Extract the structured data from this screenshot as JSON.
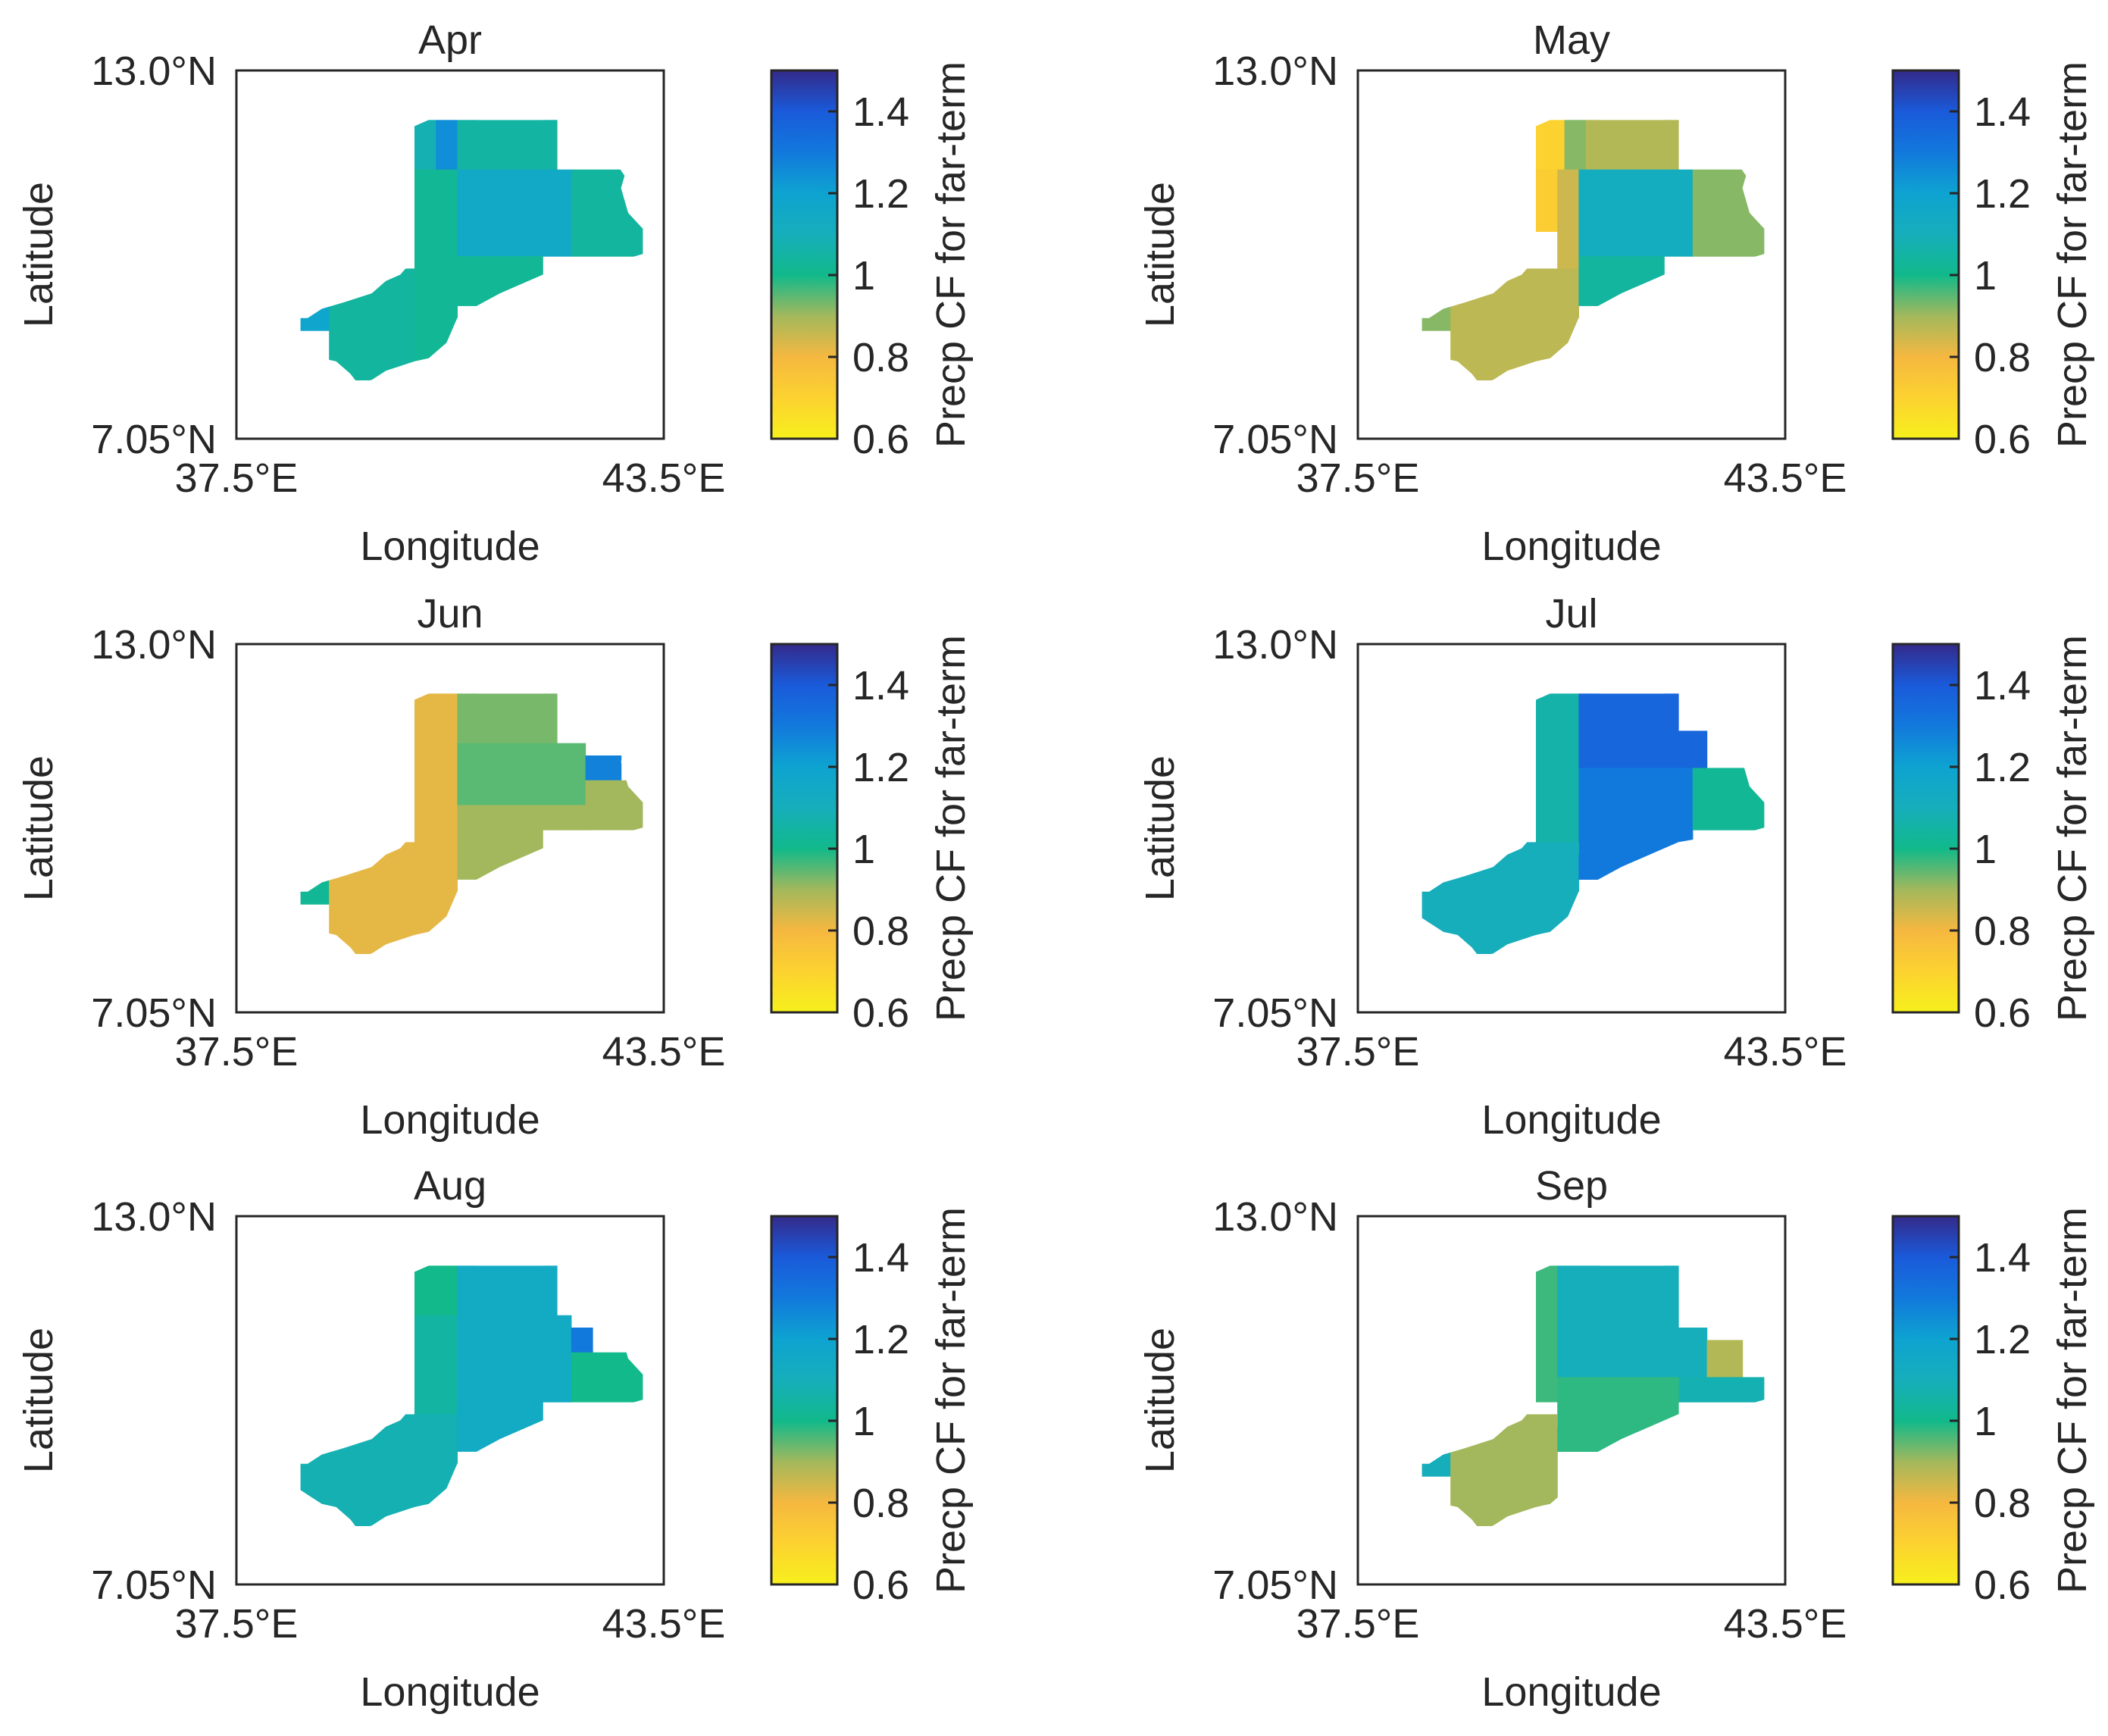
{
  "figure": {
    "colorbar": {
      "label": "Precp CF for far-term",
      "ticks": [
        "0.6",
        "0.8",
        "1",
        "1.2",
        "1.4"
      ],
      "tick_values": [
        0.6,
        0.8,
        1.0,
        1.2,
        1.4
      ],
      "range": [
        0.6,
        1.5
      ],
      "stops": [
        {
          "v": 0.6,
          "color": "#f7f01c"
        },
        {
          "v": 0.7,
          "color": "#fcd230"
        },
        {
          "v": 0.8,
          "color": "#f5b840"
        },
        {
          "v": 0.9,
          "color": "#a3b85c"
        },
        {
          "v": 1.0,
          "color": "#11b98b"
        },
        {
          "v": 1.1,
          "color": "#16aebb"
        },
        {
          "v": 1.2,
          "color": "#0ea3d1"
        },
        {
          "v": 1.3,
          "color": "#1279dc"
        },
        {
          "v": 1.4,
          "color": "#1a5ada"
        },
        {
          "v": 1.5,
          "color": "#342a8a"
        }
      ]
    },
    "axes": {
      "xlabel": "Longitude",
      "ylabel": "Latitude",
      "x_ticks": [
        "37.5°E",
        "43.5°E"
      ],
      "y_ticks": [
        "13.0°N",
        "7.05°N"
      ],
      "xlim": [
        37.5,
        43.5
      ],
      "ylim": [
        7.05,
        13.0
      ]
    }
  },
  "chart_data": [
    {
      "type": "heatmap",
      "title": "Apr",
      "cells": [
        {
          "lon": [
            40.0,
            40.3
          ],
          "lat": [
            11.4,
            12.2
          ],
          "value": 1.08
        },
        {
          "lon": [
            40.3,
            40.6
          ],
          "lat": [
            11.4,
            12.2
          ],
          "value": 1.25
        },
        {
          "lon": [
            40.6,
            42.0
          ],
          "lat": [
            11.4,
            12.2
          ],
          "value": 1.05
        },
        {
          "lon": [
            40.0,
            40.6
          ],
          "lat": [
            9.8,
            11.4
          ],
          "value": 1.02
        },
        {
          "lon": [
            40.6,
            42.2
          ],
          "lat": [
            10.0,
            11.4
          ],
          "value": 1.15
        },
        {
          "lon": [
            42.2,
            43.2
          ],
          "lat": [
            10.0,
            11.4
          ],
          "value": 1.04
        },
        {
          "lon": [
            38.4,
            38.8
          ],
          "lat": [
            8.8,
            9.8
          ],
          "value": 1.18
        },
        {
          "lon": [
            38.8,
            40.0
          ],
          "lat": [
            8.0,
            9.8
          ],
          "value": 1.04
        },
        {
          "lon": [
            40.0,
            40.6
          ],
          "lat": [
            8.0,
            9.8
          ],
          "value": 1.02
        },
        {
          "lon": [
            40.6,
            41.8
          ],
          "lat": [
            9.2,
            10.0
          ],
          "value": 1.02
        }
      ]
    },
    {
      "type": "heatmap",
      "title": "May",
      "cells": [
        {
          "lon": [
            40.0,
            40.4
          ],
          "lat": [
            11.4,
            12.2
          ],
          "value": 0.7
        },
        {
          "lon": [
            40.4,
            40.7
          ],
          "lat": [
            11.4,
            12.2
          ],
          "value": 0.92
        },
        {
          "lon": [
            40.7,
            42.0
          ],
          "lat": [
            11.4,
            12.2
          ],
          "value": 0.88
        },
        {
          "lon": [
            40.0,
            40.3
          ],
          "lat": [
            10.4,
            11.4
          ],
          "value": 0.72
        },
        {
          "lon": [
            40.3,
            40.6
          ],
          "lat": [
            9.8,
            11.4
          ],
          "value": 0.85
        },
        {
          "lon": [
            40.6,
            42.2
          ],
          "lat": [
            10.0,
            11.4
          ],
          "value": 1.12
        },
        {
          "lon": [
            42.2,
            43.2
          ],
          "lat": [
            10.0,
            11.4
          ],
          "value": 0.92
        },
        {
          "lon": [
            38.4,
            38.8
          ],
          "lat": [
            8.8,
            9.8
          ],
          "value": 0.92
        },
        {
          "lon": [
            38.8,
            40.6
          ],
          "lat": [
            8.0,
            9.8
          ],
          "value": 0.87
        },
        {
          "lon": [
            40.6,
            41.8
          ],
          "lat": [
            9.2,
            10.0
          ],
          "value": 1.04
        }
      ]
    },
    {
      "type": "heatmap",
      "title": "Jun",
      "cells": [
        {
          "lon": [
            40.0,
            40.6
          ],
          "lat": [
            9.8,
            12.2
          ],
          "value": 0.82
        },
        {
          "lon": [
            40.6,
            42.0
          ],
          "lat": [
            11.4,
            12.2
          ],
          "value": 0.93
        },
        {
          "lon": [
            40.6,
            42.4
          ],
          "lat": [
            10.4,
            11.4
          ],
          "value": 0.95
        },
        {
          "lon": [
            42.4,
            42.9
          ],
          "lat": [
            10.8,
            11.2
          ],
          "value": 1.28
        },
        {
          "lon": [
            42.4,
            43.2
          ],
          "lat": [
            10.0,
            10.8
          ],
          "value": 0.9
        },
        {
          "lon": [
            40.6,
            42.4
          ],
          "lat": [
            10.0,
            10.4
          ],
          "value": 0.9
        },
        {
          "lon": [
            38.4,
            38.8
          ],
          "lat": [
            8.8,
            9.8
          ],
          "value": 1.02
        },
        {
          "lon": [
            38.8,
            40.6
          ],
          "lat": [
            8.0,
            9.8
          ],
          "value": 0.82
        },
        {
          "lon": [
            40.6,
            41.8
          ],
          "lat": [
            9.2,
            10.0
          ],
          "value": 0.9
        }
      ]
    },
    {
      "type": "heatmap",
      "title": "Jul",
      "cells": [
        {
          "lon": [
            40.0,
            40.6
          ],
          "lat": [
            9.8,
            12.2
          ],
          "value": 1.06
        },
        {
          "lon": [
            40.6,
            42.0
          ],
          "lat": [
            11.0,
            12.2
          ],
          "value": 1.36
        },
        {
          "lon": [
            42.0,
            42.4
          ],
          "lat": [
            11.0,
            11.6
          ],
          "value": 1.36
        },
        {
          "lon": [
            40.6,
            42.2
          ],
          "lat": [
            9.6,
            11.0
          ],
          "value": 1.3
        },
        {
          "lon": [
            42.2,
            43.2
          ],
          "lat": [
            10.0,
            11.0
          ],
          "value": 1.02
        },
        {
          "lon": [
            38.4,
            40.0
          ],
          "lat": [
            8.0,
            9.8
          ],
          "value": 1.1
        },
        {
          "lon": [
            40.0,
            40.6
          ],
          "lat": [
            8.0,
            9.8
          ],
          "value": 1.1
        },
        {
          "lon": [
            40.6,
            41.8
          ],
          "lat": [
            9.2,
            9.6
          ],
          "value": 1.3
        }
      ]
    },
    {
      "type": "heatmap",
      "title": "Aug",
      "cells": [
        {
          "lon": [
            40.0,
            40.6
          ],
          "lat": [
            11.4,
            12.2
          ],
          "value": 1.0
        },
        {
          "lon": [
            40.6,
            42.0
          ],
          "lat": [
            11.4,
            12.2
          ],
          "value": 1.14
        },
        {
          "lon": [
            40.0,
            40.6
          ],
          "lat": [
            9.8,
            11.4
          ],
          "value": 1.05
        },
        {
          "lon": [
            40.6,
            42.2
          ],
          "lat": [
            10.0,
            11.4
          ],
          "value": 1.14
        },
        {
          "lon": [
            42.2,
            42.5
          ],
          "lat": [
            10.8,
            11.2
          ],
          "value": 1.3
        },
        {
          "lon": [
            42.2,
            43.2
          ],
          "lat": [
            10.0,
            10.8
          ],
          "value": 1.0
        },
        {
          "lon": [
            38.4,
            40.0
          ],
          "lat": [
            8.0,
            9.8
          ],
          "value": 1.08
        },
        {
          "lon": [
            40.0,
            40.6
          ],
          "lat": [
            8.0,
            9.8
          ],
          "value": 1.08
        },
        {
          "lon": [
            40.6,
            41.8
          ],
          "lat": [
            9.2,
            10.0
          ],
          "value": 1.14
        }
      ]
    },
    {
      "type": "heatmap",
      "title": "Sep",
      "cells": [
        {
          "lon": [
            40.0,
            40.3
          ],
          "lat": [
            10.0,
            12.2
          ],
          "value": 0.97
        },
        {
          "lon": [
            40.3,
            42.0
          ],
          "lat": [
            11.2,
            12.2
          ],
          "value": 1.1
        },
        {
          "lon": [
            40.3,
            42.4
          ],
          "lat": [
            10.4,
            11.2
          ],
          "value": 1.1
        },
        {
          "lon": [
            42.4,
            42.9
          ],
          "lat": [
            10.4,
            11.0
          ],
          "value": 0.88
        },
        {
          "lon": [
            42.0,
            43.2
          ],
          "lat": [
            10.0,
            10.4
          ],
          "value": 1.08
        },
        {
          "lon": [
            40.3,
            42.0
          ],
          "lat": [
            9.6,
            10.4
          ],
          "value": 0.98
        },
        {
          "lon": [
            38.4,
            38.8
          ],
          "lat": [
            8.8,
            9.8
          ],
          "value": 1.1
        },
        {
          "lon": [
            38.8,
            40.3
          ],
          "lat": [
            8.0,
            9.8
          ],
          "value": 0.9
        },
        {
          "lon": [
            40.3,
            41.8
          ],
          "lat": [
            9.2,
            9.6
          ],
          "value": 0.98
        }
      ]
    }
  ]
}
